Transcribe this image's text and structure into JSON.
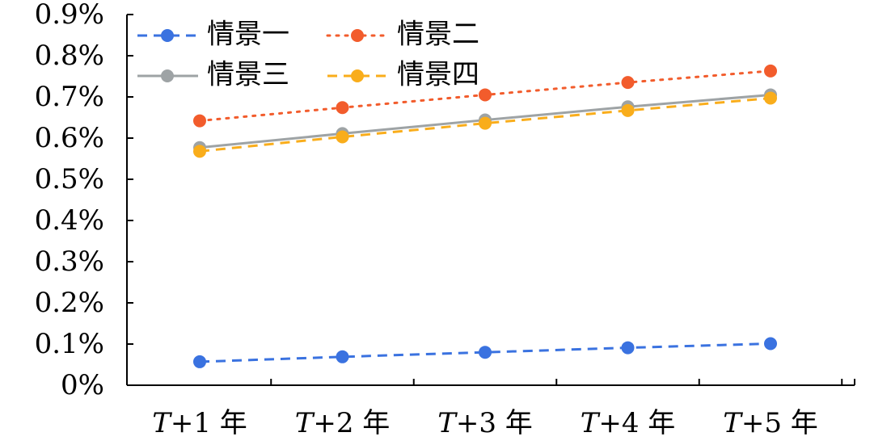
{
  "chart_data": {
    "type": "line",
    "title": "",
    "xlabel": "",
    "ylabel": "",
    "categories": [
      "T+1 年",
      "T+2 年",
      "T+3 年",
      "T+4 年",
      "T+5 年"
    ],
    "category_parts": [
      {
        "italic": "T",
        "rest": "+1 年"
      },
      {
        "italic": "T",
        "rest": "+2 年"
      },
      {
        "italic": "T",
        "rest": "+3 年"
      },
      {
        "italic": "T",
        "rest": "+4 年"
      },
      {
        "italic": "T",
        "rest": "+5 年"
      }
    ],
    "ylim": [
      0,
      0.9
    ],
    "yticks": [
      0,
      0.1,
      0.2,
      0.3,
      0.4,
      0.5,
      0.6,
      0.7,
      0.8,
      0.9
    ],
    "ytick_labels": [
      "0%",
      "0.1%",
      "0.2%",
      "0.3%",
      "0.4%",
      "0.5%",
      "0.6%",
      "0.7%",
      "0.8%",
      "0.9%"
    ],
    "grid": false,
    "legend_position": "top-left",
    "series": [
      {
        "name": "情景一",
        "values": [
          0.057,
          0.069,
          0.08,
          0.091,
          0.101
        ],
        "color": "#3a72e0",
        "line_style": "dashed"
      },
      {
        "name": "情景二",
        "values": [
          0.642,
          0.674,
          0.705,
          0.735,
          0.763
        ],
        "color": "#f25c2c",
        "line_style": "dotted"
      },
      {
        "name": "情景三",
        "values": [
          0.577,
          0.611,
          0.644,
          0.676,
          0.705
        ],
        "color": "#9ea3a5",
        "line_style": "solid"
      },
      {
        "name": "情景四",
        "values": [
          0.568,
          0.603,
          0.636,
          0.667,
          0.697
        ],
        "color": "#f9ad1b",
        "line_style": "dashed"
      }
    ]
  }
}
